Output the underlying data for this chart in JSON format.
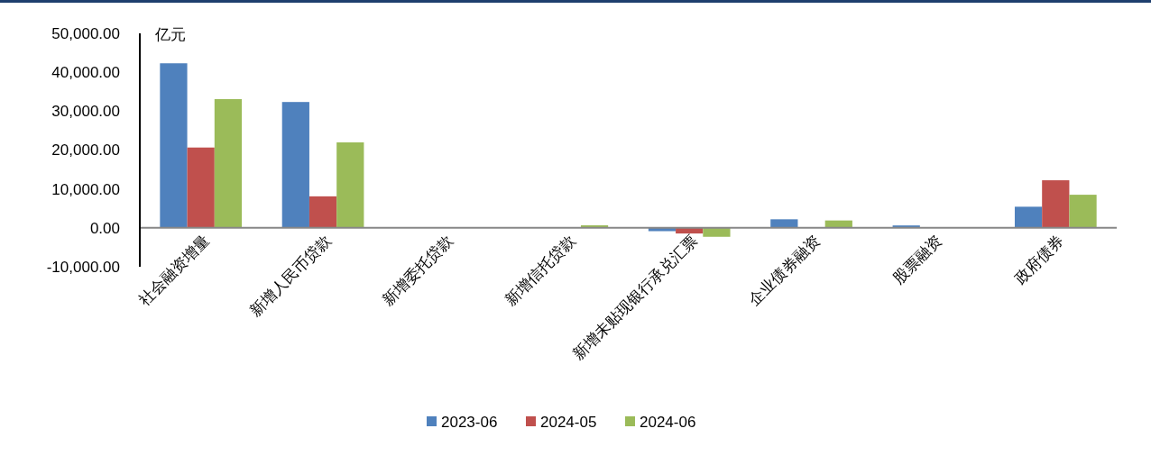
{
  "chart_data": {
    "type": "bar",
    "ylabel": "亿元",
    "categories": [
      "社会融资增量",
      "新增人民币贷款",
      "新增委托贷款",
      "新增信托贷款",
      "新增未贴现银行承兑汇票",
      "企业债券融资",
      "股票融资",
      "政府债券"
    ],
    "series": [
      {
        "name": "2023-06",
        "color": "#4f81bd",
        "values": [
          42300,
          32350,
          0,
          0,
          -850,
          2200,
          620,
          5430
        ]
      },
      {
        "name": "2024-05",
        "color": "#c0504d",
        "values": [
          20650,
          8100,
          0,
          0,
          -1450,
          0,
          0,
          12230
        ]
      },
      {
        "name": "2024-06",
        "color": "#9bbb59",
        "values": [
          33100,
          21970,
          0,
          650,
          -2300,
          1900,
          0,
          8510
        ]
      }
    ],
    "ylim": [
      -10000,
      50000
    ],
    "yticks": [
      {
        "value": -10000,
        "label": "-10,000.00"
      },
      {
        "value": 0,
        "label": "0.00"
      },
      {
        "value": 10000,
        "label": "10,000.00"
      },
      {
        "value": 20000,
        "label": "20,000.00"
      },
      {
        "value": 30000,
        "label": "30,000.00"
      },
      {
        "value": 40000,
        "label": "40,000.00"
      },
      {
        "value": 50000,
        "label": "50,000.00"
      }
    ],
    "grid": false,
    "legend": "bottom"
  }
}
